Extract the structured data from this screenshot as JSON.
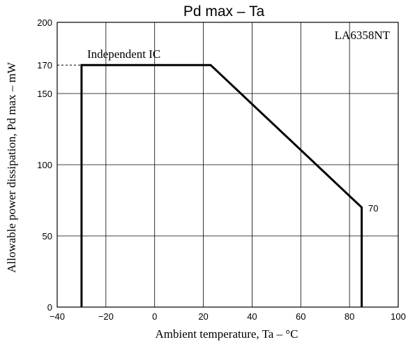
{
  "chart_data": {
    "type": "line",
    "title": "Pd max  –  Ta",
    "xlabel": "Ambient temperature,  Ta  –  °C",
    "ylabel": "Allowable power dissipation,  Pd max  –  mW",
    "xlim": [
      -40,
      100
    ],
    "ylim": [
      0,
      200
    ],
    "xticks": [
      -40,
      -20,
      0,
      20,
      40,
      60,
      80,
      100
    ],
    "xtick_labels": [
      "−40",
      "−20",
      "0",
      "20",
      "40",
      "60",
      "80",
      "100"
    ],
    "yticks": [
      0,
      50,
      100,
      150,
      170,
      200
    ],
    "ytick_labels": [
      "0",
      "50",
      "100",
      "150",
      "170",
      "200"
    ],
    "grid": true,
    "series": [
      {
        "x": [
          -30,
          -30,
          23,
          85,
          85
        ],
        "y": [
          0,
          170,
          170,
          70,
          0
        ]
      }
    ],
    "reference_line": {
      "y": 170,
      "x_from": -40,
      "x_to": -30,
      "style": "dashed"
    },
    "annotations": {
      "part_number": "LA6358NT",
      "curve_label": "Independent IC",
      "end_value": "70"
    },
    "colors": {
      "line": "#000000",
      "grid": "#000000",
      "background": "#ffffff"
    }
  }
}
